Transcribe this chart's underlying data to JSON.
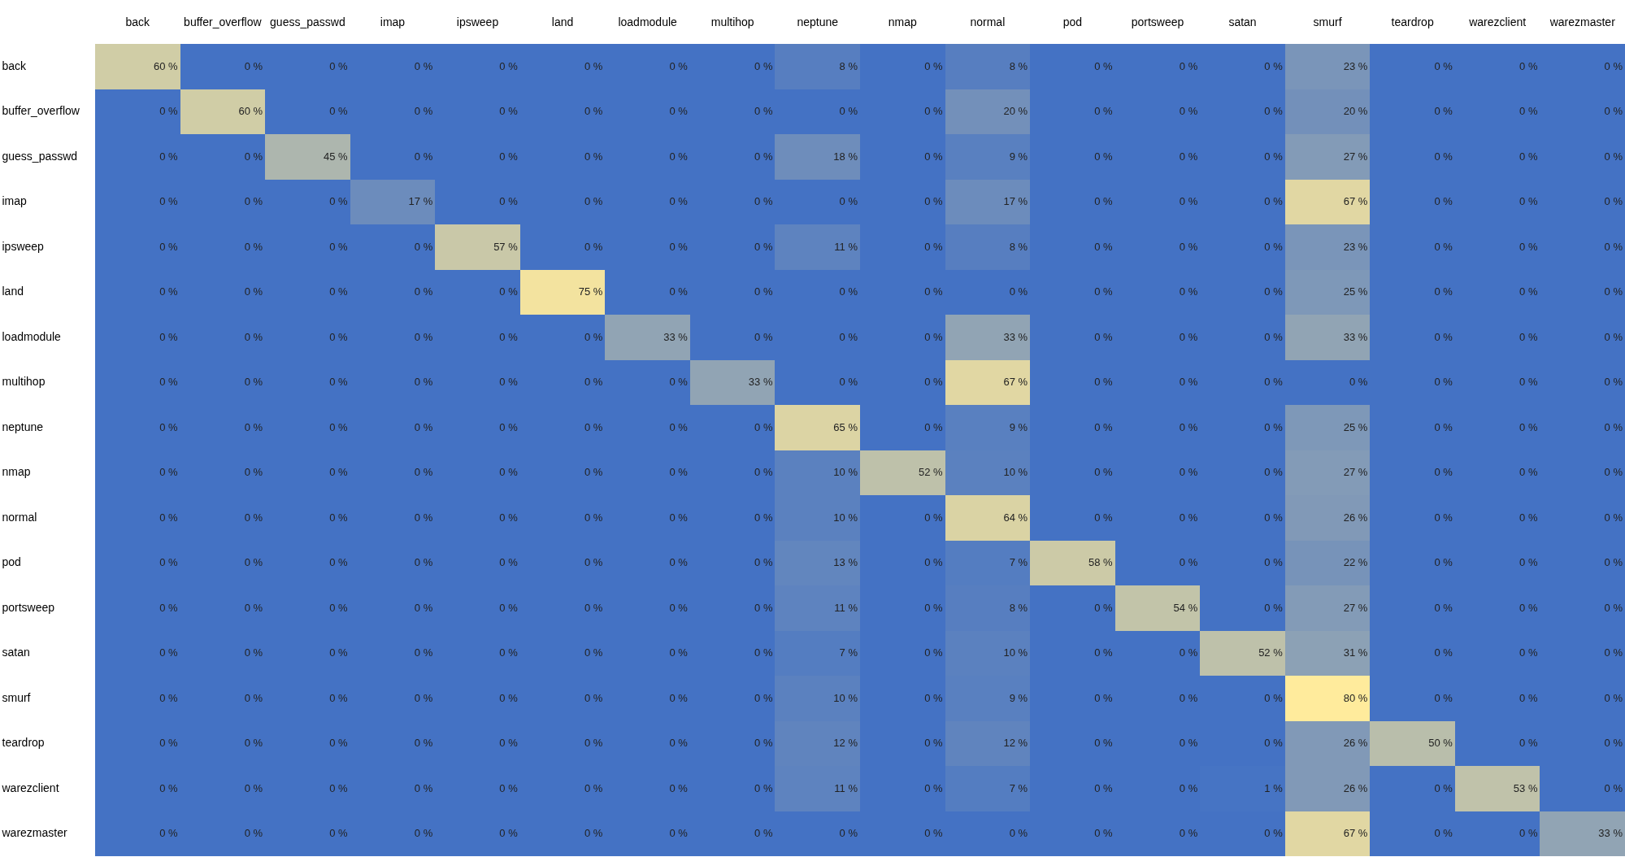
{
  "chart_data": {
    "type": "heatmap",
    "categories": [
      "back",
      "buffer_overflow",
      "guess_passwd",
      "imap",
      "ipsweep",
      "land",
      "loadmodule",
      "multihop",
      "neptune",
      "nmap",
      "normal",
      "pod",
      "portsweep",
      "satan",
      "smurf",
      "teardrop",
      "warezclient",
      "warezmaster"
    ],
    "y_categories": [
      "back",
      "buffer_overflow",
      "guess_passwd",
      "imap",
      "ipsweep",
      "land",
      "loadmodule",
      "multihop",
      "neptune",
      "nmap",
      "normal",
      "pod",
      "portsweep",
      "satan",
      "smurf",
      "teardrop",
      "warezclient",
      "warezmaster"
    ],
    "cells": [
      [
        60,
        0,
        0,
        0,
        0,
        0,
        0,
        0,
        8,
        0,
        8,
        0,
        0,
        0,
        23,
        0,
        0,
        0
      ],
      [
        0,
        60,
        0,
        0,
        0,
        0,
        0,
        0,
        0,
        0,
        20,
        0,
        0,
        0,
        20,
        0,
        0,
        0
      ],
      [
        0,
        0,
        45,
        0,
        0,
        0,
        0,
        0,
        18,
        0,
        9,
        0,
        0,
        0,
        27,
        0,
        0,
        0
      ],
      [
        0,
        0,
        0,
        17,
        0,
        0,
        0,
        0,
        0,
        0,
        17,
        0,
        0,
        0,
        67,
        0,
        0,
        0
      ],
      [
        0,
        0,
        0,
        0,
        57,
        0,
        0,
        0,
        11,
        0,
        8,
        0,
        0,
        0,
        23,
        0,
        0,
        0
      ],
      [
        0,
        0,
        0,
        0,
        0,
        75,
        0,
        0,
        0,
        0,
        0,
        0,
        0,
        0,
        25,
        0,
        0,
        0
      ],
      [
        0,
        0,
        0,
        0,
        0,
        0,
        33,
        0,
        0,
        0,
        33,
        0,
        0,
        0,
        33,
        0,
        0,
        0
      ],
      [
        0,
        0,
        0,
        0,
        0,
        0,
        0,
        33,
        0,
        0,
        67,
        0,
        0,
        0,
        0,
        0,
        0,
        0
      ],
      [
        0,
        0,
        0,
        0,
        0,
        0,
        0,
        0,
        65,
        0,
        9,
        0,
        0,
        0,
        25,
        0,
        0,
        0
      ],
      [
        0,
        0,
        0,
        0,
        0,
        0,
        0,
        0,
        10,
        52,
        10,
        0,
        0,
        0,
        27,
        0,
        0,
        0
      ],
      [
        0,
        0,
        0,
        0,
        0,
        0,
        0,
        0,
        10,
        0,
        64,
        0,
        0,
        0,
        26,
        0,
        0,
        0
      ],
      [
        0,
        0,
        0,
        0,
        0,
        0,
        0,
        0,
        13,
        0,
        7,
        58,
        0,
        0,
        22,
        0,
        0,
        0
      ],
      [
        0,
        0,
        0,
        0,
        0,
        0,
        0,
        0,
        11,
        0,
        8,
        0,
        54,
        0,
        27,
        0,
        0,
        0
      ],
      [
        0,
        0,
        0,
        0,
        0,
        0,
        0,
        0,
        7,
        0,
        10,
        0,
        0,
        52,
        31,
        0,
        0,
        0
      ],
      [
        0,
        0,
        0,
        0,
        0,
        0,
        0,
        0,
        10,
        0,
        9,
        0,
        0,
        0,
        80,
        0,
        0,
        0
      ],
      [
        0,
        0,
        0,
        0,
        0,
        0,
        0,
        0,
        12,
        0,
        12,
        0,
        0,
        0,
        26,
        50,
        0,
        0
      ],
      [
        0,
        0,
        0,
        0,
        0,
        0,
        0,
        0,
        11,
        0,
        7,
        0,
        0,
        1,
        26,
        0,
        53,
        0
      ],
      [
        0,
        0,
        0,
        0,
        0,
        0,
        0,
        0,
        0,
        0,
        0,
        0,
        0,
        0,
        67,
        0,
        0,
        33
      ]
    ],
    "cell_labels": [
      [
        "60 %",
        "0 %",
        "0 %",
        "0 %",
        "0 %",
        "0 %",
        "0 %",
        "0 %",
        "8 %",
        "0 %",
        "8 %",
        "0 %",
        "0 %",
        "0 %",
        "23 %",
        "0 %",
        "0 %",
        "0 %"
      ],
      [
        "0 %",
        "60 %",
        "0 %",
        "0 %",
        "0 %",
        "0 %",
        "0 %",
        "0 %",
        "0 %",
        "0 %",
        "20 %",
        "0 %",
        "0 %",
        "0 %",
        "20 %",
        "0 %",
        "0 %",
        "0 %"
      ],
      [
        "0 %",
        "0 %",
        "45 %",
        "0 %",
        "0 %",
        "0 %",
        "0 %",
        "0 %",
        "18 %",
        "0 %",
        "9 %",
        "0 %",
        "0 %",
        "0 %",
        "27 %",
        "0 %",
        "0 %",
        "0 %"
      ],
      [
        "0 %",
        "0 %",
        "0 %",
        "17 %",
        "0 %",
        "0 %",
        "0 %",
        "0 %",
        "0 %",
        "0 %",
        "17 %",
        "0 %",
        "0 %",
        "0 %",
        "67 %",
        "0 %",
        "0 %",
        "0 %"
      ],
      [
        "0 %",
        "0 %",
        "0 %",
        "0 %",
        "57 %",
        "0 %",
        "0 %",
        "0 %",
        "11 %",
        "0 %",
        "8 %",
        "0 %",
        "0 %",
        "0 %",
        "23 %",
        "0 %",
        "0 %",
        "0 %"
      ],
      [
        "0 %",
        "0 %",
        "0 %",
        "0 %",
        "0 %",
        "75 %",
        "0 %",
        "0 %",
        "0 %",
        "0 %",
        "0 %",
        "0 %",
        "0 %",
        "0 %",
        "25 %",
        "0 %",
        "0 %",
        "0 %"
      ],
      [
        "0 %",
        "0 %",
        "0 %",
        "0 %",
        "0 %",
        "0 %",
        "33 %",
        "0 %",
        "0 %",
        "0 %",
        "33 %",
        "0 %",
        "0 %",
        "0 %",
        "33 %",
        "0 %",
        "0 %",
        "0 %"
      ],
      [
        "0 %",
        "0 %",
        "0 %",
        "0 %",
        "0 %",
        "0 %",
        "0 %",
        "33 %",
        "0 %",
        "0 %",
        "67 %",
        "0 %",
        "0 %",
        "0 %",
        "0 %",
        "0 %",
        "0 %",
        "0 %"
      ],
      [
        "0 %",
        "0 %",
        "0 %",
        "0 %",
        "0 %",
        "0 %",
        "0 %",
        "0 %",
        "65 %",
        "0 %",
        "9 %",
        "0 %",
        "0 %",
        "0 %",
        "25 %",
        "0 %",
        "0 %",
        "0 %"
      ],
      [
        "0 %",
        "0 %",
        "0 %",
        "0 %",
        "0 %",
        "0 %",
        "0 %",
        "0 %",
        "10 %",
        "52 %",
        "10 %",
        "0 %",
        "0 %",
        "0 %",
        "27 %",
        "0 %",
        "0 %",
        "0 %"
      ],
      [
        "0 %",
        "0 %",
        "0 %",
        "0 %",
        "0 %",
        "0 %",
        "0 %",
        "0 %",
        "10 %",
        "0 %",
        "64 %",
        "0 %",
        "0 %",
        "0 %",
        "26 %",
        "0 %",
        "0 %",
        "0 %"
      ],
      [
        "0 %",
        "0 %",
        "0 %",
        "0 %",
        "0 %",
        "0 %",
        "0 %",
        "0 %",
        "13 %",
        "0 %",
        "7 %",
        "58 %",
        "0 %",
        "0 %",
        "22 %",
        "0 %",
        "0 %",
        "0 %"
      ],
      [
        "0 %",
        "0 %",
        "0 %",
        "0 %",
        "0 %",
        "0 %",
        "0 %",
        "0 %",
        "11 %",
        "0 %",
        "8 %",
        "0 %",
        "54 %",
        "0 %",
        "27 %",
        "0 %",
        "0 %",
        "0 %"
      ],
      [
        "0 %",
        "0 %",
        "0 %",
        "0 %",
        "0 %",
        "0 %",
        "0 %",
        "0 %",
        "7 %",
        "0 %",
        "10 %",
        "0 %",
        "0 %",
        "52 %",
        "31 %",
        "0 %",
        "0 %",
        "0 %"
      ],
      [
        "0 %",
        "0 %",
        "0 %",
        "0 %",
        "0 %",
        "0 %",
        "0 %",
        "0 %",
        "10 %",
        "0 %",
        "9 %",
        "0 %",
        "0 %",
        "0 %",
        "80 %",
        "0 %",
        "0 %",
        "0 %"
      ],
      [
        "0 %",
        "0 %",
        "0 %",
        "0 %",
        "0 %",
        "0 %",
        "0 %",
        "0 %",
        "12 %",
        "0 %",
        "12 %",
        "0 %",
        "0 %",
        "0 %",
        "26 %",
        "50 %",
        "0 %",
        "0 %"
      ],
      [
        "0 %",
        "0 %",
        "0 %",
        "0 %",
        "0 %",
        "0 %",
        "0 %",
        "0 %",
        "11 %",
        "0 %",
        "7 %",
        "0 %",
        "0 %",
        "1 %",
        "26 %",
        "0 %",
        "53 %",
        "0 %"
      ],
      [
        "0 %",
        "0 %",
        "0 %",
        "0 %",
        "0 %",
        "0 %",
        "0 %",
        "0 %",
        "0 %",
        "0 %",
        "0 %",
        "0 %",
        "0 %",
        "0 %",
        "67 %",
        "0 %",
        "0 %",
        "33 %"
      ]
    ]
  }
}
